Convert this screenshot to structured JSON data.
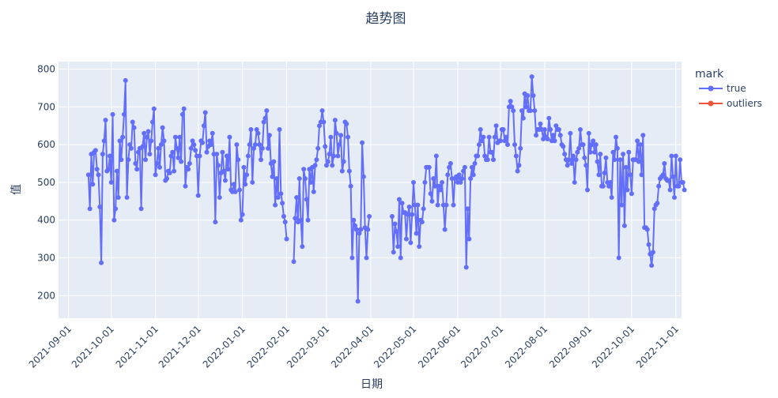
{
  "chart_data": {
    "type": "line",
    "title": "趋势图",
    "xlabel": "日期",
    "ylabel": "值",
    "x_axis": {
      "type": "date",
      "range": [
        "2021-08-25",
        "2022-11-05"
      ],
      "ticks": [
        "2021-09-01",
        "2021-10-01",
        "2021-11-01",
        "2021-12-01",
        "2022-01-01",
        "2022-02-01",
        "2022-03-01",
        "2022-04-01",
        "2022-05-01",
        "2022-06-01",
        "2022-07-01",
        "2022-08-01",
        "2022-09-01",
        "2022-10-01",
        "2022-11-01"
      ]
    },
    "y_axis": {
      "range": [
        140,
        820
      ],
      "ticks": [
        200,
        300,
        400,
        500,
        600,
        700,
        800
      ]
    },
    "grid": true,
    "legend": {
      "title": "mark",
      "position": "top-right"
    },
    "colors": {
      "true": "#636efa",
      "outliers": "#ef553b",
      "plot_bg": "#e5ecf6",
      "text": "#2a3f5f"
    },
    "series": [
      {
        "name": "true",
        "segments": [
          {
            "start": "2021-09-15",
            "values": [
              520,
              430,
              575,
              495,
              580,
              585,
              535,
              520,
              435,
              287,
              575,
              610,
              665,
              530,
              535,
              570,
              500,
              680,
              400,
              430,
              530,
              460,
              610,
              560,
              620,
              680,
              770,
              460,
              560,
              600,
              590,
              660,
              645,
              550,
              535,
              580,
              590,
              430,
              595,
              630,
              560,
              620,
              635,
              575,
              610,
              660,
              695,
              520,
              550,
              590,
              540,
              600,
              645,
              610,
              505,
              510,
              530,
              525,
              570,
              580,
              530,
              620,
              590,
              565,
              620,
              555,
              680,
              695,
              490,
              540,
              535,
              550,
              590,
              610,
              600,
              585,
              570,
              465,
              570,
              610,
              605,
              650,
              685,
              580,
              595,
              610,
              600,
              630,
              575,
              395,
              575,
              545,
              460,
              525,
              580,
              530,
              505,
              570,
              535,
              620,
              480,
              475,
              495,
              475,
              600,
              560,
              480,
              400,
              415,
              540,
              495,
              520,
              570,
              600,
              640,
              500,
              590,
              600,
              640,
              630,
              600,
              560,
              590,
              660,
              670,
              690,
              590,
              625,
              550,
              515,
              555,
              440,
              510,
              460,
              640,
              470,
              445,
              410,
              395,
              350
            ]
          },
          {
            "start": "2022-02-06",
            "values": [
              290,
              405,
              460,
              395,
              510,
              400,
              330,
              535,
              510,
              455,
              400,
              535,
              500,
              540,
              475,
              545,
              560,
              590,
              650,
              660,
              690,
              660,
              595,
              545,
              555,
              575,
              620,
              545,
              570,
              665,
              630,
              570,
              600,
              625,
              530,
              555,
              660,
              655,
              620,
              530,
              490,
              300,
              400,
              385,
              375,
              185,
              365,
              375,
              605,
              515,
              380,
              300,
              375,
              410
            ]
          },
          {
            "start": "2022-04-16",
            "values": [
              410,
              315,
              390,
              370,
              330,
              455,
              300,
              445,
              420,
              420,
              350,
              415,
              435,
              340,
              415,
              500,
              440,
              365,
              440,
              330,
              400,
              395,
              430,
              500,
              540,
              540,
              540,
              470,
              450,
              510,
              490,
              570,
              440,
              490,
              480,
              500,
              440,
              375,
              440,
              520,
              540,
              550,
              510,
              440,
              510,
              515,
              500,
              520,
              500,
              510,
              530,
              540,
              275,
              430,
              350,
              510,
              540,
              520,
              550,
              570,
              570,
              600,
              640,
              610,
              620,
              570,
              560,
              560,
              620,
              580,
              580,
              560,
              620,
              650,
              605,
              610,
              610,
              640,
              640,
              610,
              620,
              600,
              700,
              715,
              700,
              690,
              600,
              570,
              530,
              545,
              590,
              690,
              670,
              735,
              700,
              730,
              690,
              690,
              780,
              730,
              690,
              625,
              640,
              640,
              655,
              640,
              615,
              640,
              620,
              615,
              670,
              640,
              610,
              625,
              610,
              650,
              640,
              640,
              625,
              600,
              595,
              575,
              560,
              545,
              560,
              630,
              550,
              570,
              500,
              560,
              580,
              590,
              640,
              600,
              600,
              565,
              545,
              480,
              630,
              580,
              600,
              610,
              580,
              600,
              555,
              520,
              575,
              490,
              490,
              525,
              565,
              500,
              490,
              500,
              460,
              580,
              560,
              620,
              590,
              300,
              560,
              440,
              575,
              385,
              540,
              480,
              580,
              520,
              470,
              560,
              560,
              560,
              610,
              555,
              600,
              520,
              625,
              380,
              380,
              375,
              335,
              310,
              280,
              315,
              430,
              440,
              445,
              490,
              510,
              515,
              520,
              550,
              510,
              505,
              505,
              480,
              570,
              515,
              460,
              570,
              490,
              490,
              560,
              500,
              500,
              480
            ]
          }
        ]
      },
      {
        "name": "outliers",
        "segments": []
      }
    ]
  }
}
